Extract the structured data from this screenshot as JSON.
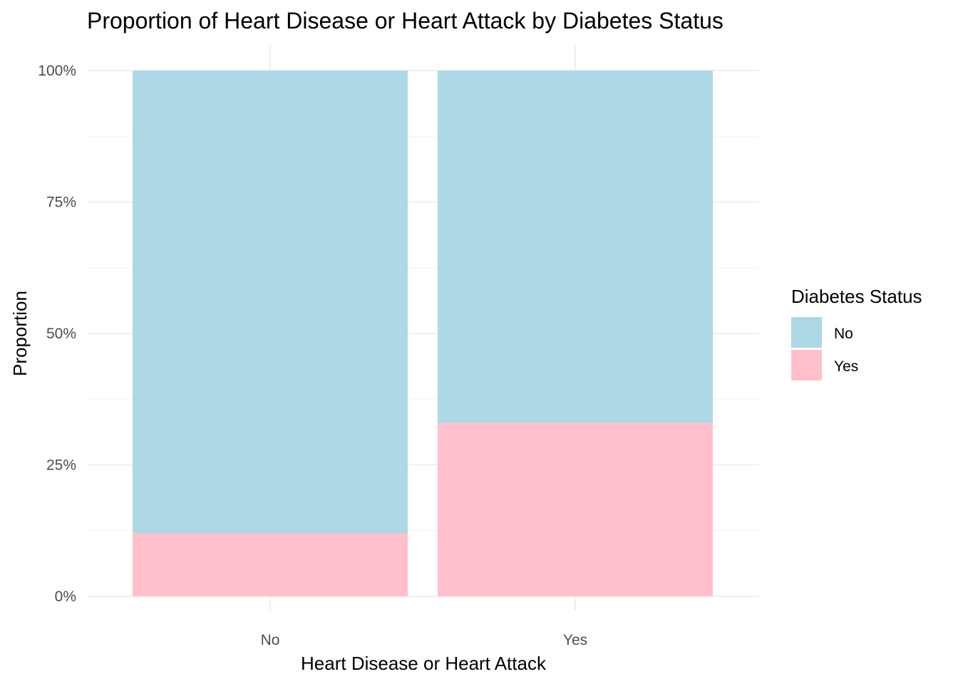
{
  "chart_data": {
    "type": "bar",
    "stacked": true,
    "position": "fill",
    "title": "Proportion of Heart Disease or Heart Attack by Diabetes Status",
    "xlabel": "Heart Disease or Heart Attack",
    "ylabel": "Proportion",
    "categories": [
      "No",
      "Yes"
    ],
    "series": [
      {
        "name": "No",
        "values": [
          0.88,
          0.67
        ],
        "color": "#ADD8E6"
      },
      {
        "name": "Yes",
        "values": [
          0.12,
          0.33
        ],
        "color": "#FFC0CB"
      }
    ],
    "ylim": [
      0,
      1
    ],
    "yticks": [
      0,
      0.25,
      0.5,
      0.75,
      1.0
    ],
    "ytick_labels": [
      "0%",
      "25%",
      "50%",
      "75%",
      "100%"
    ],
    "grid": true,
    "legend": {
      "title": "Diabetes Status",
      "placement": "right",
      "entries": [
        "No",
        "Yes"
      ]
    }
  }
}
